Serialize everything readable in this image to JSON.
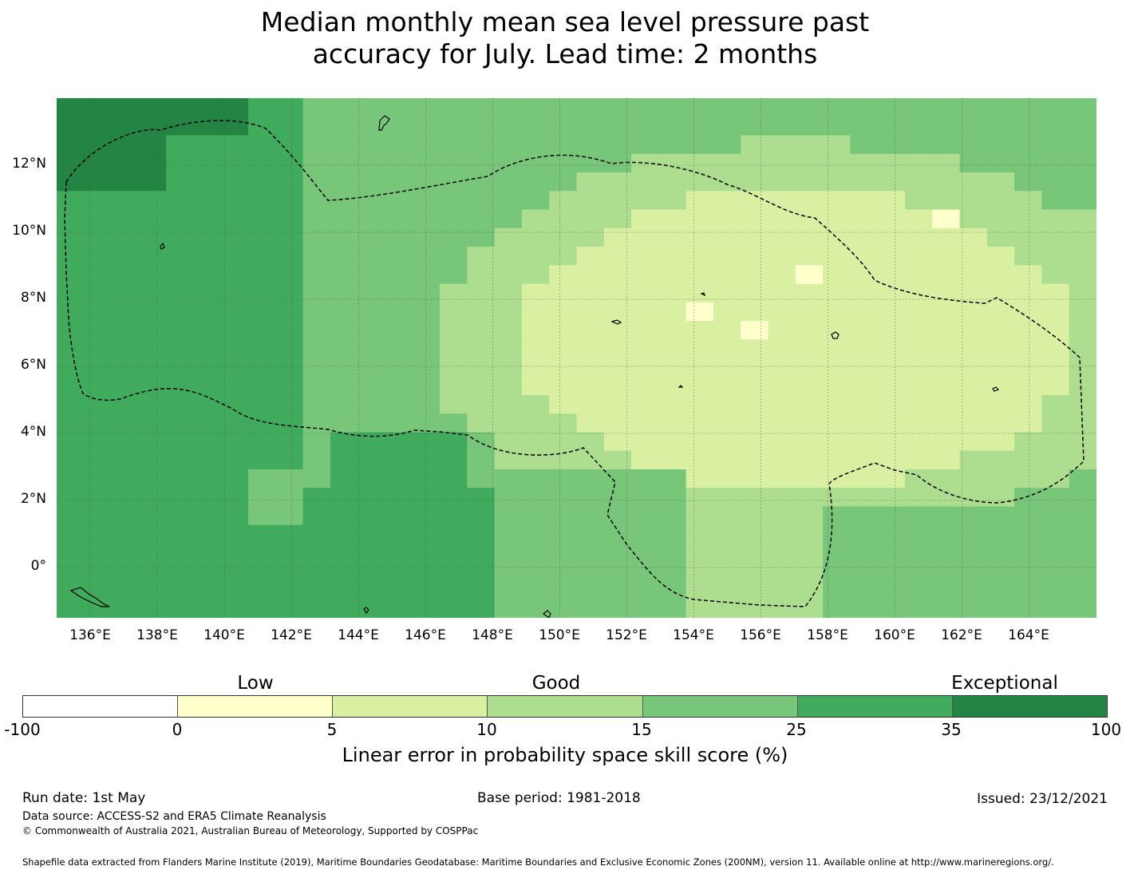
{
  "title": {
    "line1": "Median monthly mean sea level pressure past",
    "line2": "accuracy for July. Lead time: 2 months"
  },
  "map": {
    "lon_ticks": [
      "136°E",
      "138°E",
      "140°E",
      "142°E",
      "144°E",
      "146°E",
      "148°E",
      "150°E",
      "152°E",
      "154°E",
      "156°E",
      "158°E",
      "160°E",
      "162°E",
      "164°E"
    ],
    "lat_ticks": [
      "12°N",
      "10°N",
      "8°N",
      "6°N",
      "4°N",
      "2°N",
      "0°"
    ],
    "gridlines": true,
    "boundary_style": "dashed",
    "lon_range": [
      135.0,
      166.0
    ],
    "lat_range": [
      -1.5,
      14.0
    ]
  },
  "colorbar": {
    "categories": [
      "Low",
      "Good",
      "Exceptional"
    ],
    "bins": [
      "-100",
      "0",
      "5",
      "10",
      "15",
      "25",
      "35",
      "100"
    ],
    "colors": [
      "#ffffff",
      "#ffffcc",
      "#d9f0a3",
      "#addd8e",
      "#78c679",
      "#41ab5d",
      "#238443"
    ],
    "label": "Linear error in probability space skill score (%)"
  },
  "footer": {
    "run_date": "Run date: 1st May",
    "base_period": "Base period: 1981-2018",
    "issued": "Issued: 23/12/2021",
    "data_source": "Data source: ACCESS-S2 and ERA5 Climate Reanalysis",
    "copyright": "© Commonwealth of Australia 2021, Australian Bureau of Meteorology, Supported by COSPPac",
    "shapefile": "Shapefile data extracted from Flanders Marine Institute (2019), Maritime Boundaries Geodatabase: Maritime Boundaries and Exclusive Economic Zones (200NM), version 11. Available online at http://www.marineregions.org/."
  }
}
